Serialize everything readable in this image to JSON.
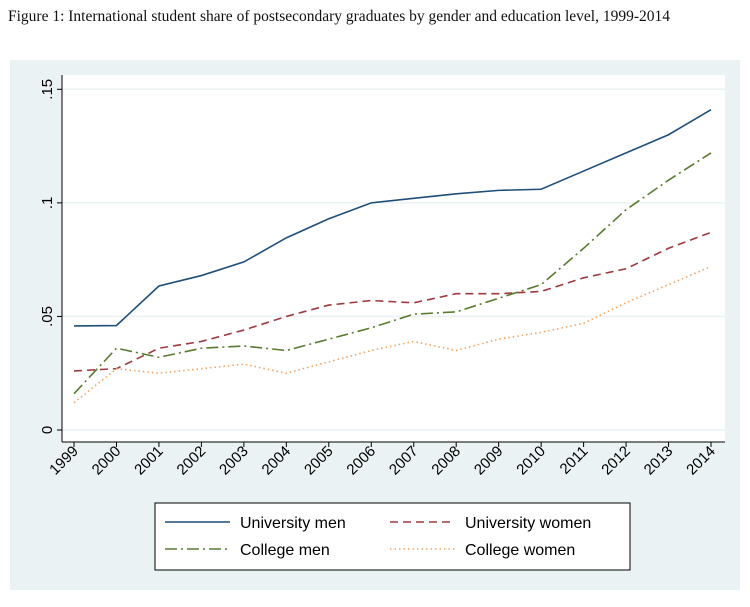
{
  "caption": "Figure 1: International student share of postsecondary graduates by gender and education level, 1999-2014",
  "chart_data": {
    "type": "line",
    "title": "International student share of postsecondary graduates by gender and education level, 1999-2014",
    "xlabel": "",
    "ylabel": "",
    "x": [
      1999,
      2000,
      2001,
      2002,
      2003,
      2004,
      2005,
      2006,
      2007,
      2008,
      2009,
      2010,
      2011,
      2012,
      2013,
      2014
    ],
    "ylim": [
      0,
      0.15
    ],
    "yticks": [
      0,
      0.05,
      0.1,
      0.15
    ],
    "ytick_labels": [
      "0",
      ".05",
      ".1",
      ".15"
    ],
    "grid": true,
    "legend": "bottom",
    "series": [
      {
        "name": "University men",
        "color": "#1f4e79",
        "dash": "",
        "values": [
          0.0458,
          0.046,
          0.0634,
          0.068,
          0.074,
          0.0846,
          0.093,
          0.1,
          0.102,
          0.104,
          0.1055,
          0.106,
          0.114,
          0.122,
          0.13,
          0.141
        ]
      },
      {
        "name": "University women",
        "color": "#9e3a3f",
        "dash": "8,5",
        "values": [
          0.026,
          0.027,
          0.036,
          0.039,
          0.044,
          0.05,
          0.055,
          0.057,
          0.056,
          0.06,
          0.06,
          0.061,
          0.067,
          0.071,
          0.08,
          0.087
        ]
      },
      {
        "name": "College men",
        "color": "#5a7a32",
        "dash": "12,4,2,4",
        "values": [
          0.016,
          0.036,
          0.032,
          0.036,
          0.037,
          0.035,
          0.04,
          0.045,
          0.051,
          0.052,
          0.058,
          0.064,
          0.08,
          0.097,
          0.11,
          0.122
        ]
      },
      {
        "name": "College women",
        "color": "#f4a460",
        "dash": "1.5,3",
        "values": [
          0.012,
          0.027,
          0.025,
          0.027,
          0.029,
          0.025,
          0.03,
          0.035,
          0.039,
          0.035,
          0.04,
          0.043,
          0.047,
          0.056,
          0.064,
          0.072
        ]
      }
    ]
  }
}
